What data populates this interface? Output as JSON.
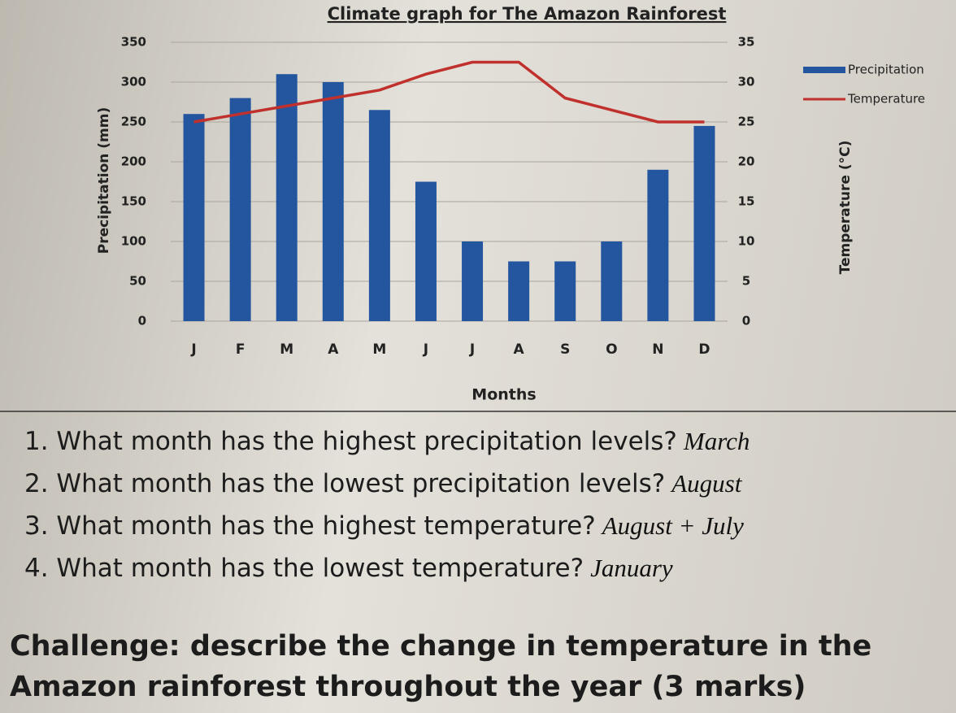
{
  "chart_data": {
    "type": "bar",
    "title": "Climate graph for The Amazon Rainforest",
    "categories": [
      "J",
      "F",
      "M",
      "A",
      "M",
      "J",
      "J",
      "A",
      "S",
      "O",
      "N",
      "D"
    ],
    "series": [
      {
        "name": "Precipitation",
        "type": "bar",
        "color": "#2456a0",
        "values": [
          260,
          280,
          310,
          300,
          265,
          175,
          100,
          75,
          75,
          100,
          190,
          245
        ]
      },
      {
        "name": "Temperature",
        "type": "line",
        "axis": "y2",
        "color": "#c0302c",
        "values": [
          25,
          26,
          27,
          28,
          29,
          31,
          32.5,
          32.5,
          28,
          26.5,
          25,
          25
        ]
      }
    ],
    "ylabel": "Precipitation (mm)",
    "y2label": "Temperature (°C)",
    "xlabel": "Months",
    "ylim": [
      0,
      350
    ],
    "yticks": [
      0,
      50,
      100,
      150,
      200,
      250,
      300,
      350
    ],
    "y2lim": [
      0,
      35
    ],
    "y2ticks": [
      0,
      5,
      10,
      15,
      20,
      25,
      30,
      35
    ],
    "grid": true,
    "legend": "right"
  },
  "questions": [
    {
      "text": "1. What month has the highest precipitation levels?",
      "answer": "March"
    },
    {
      "text": "2. What month has the lowest precipitation levels?",
      "answer": "August"
    },
    {
      "text": "3. What month has the highest temperature?",
      "answer": "August + July"
    },
    {
      "text": "4. What month has the lowest temperature?",
      "answer": "January"
    }
  ],
  "challenge": "Challenge: describe the change in temperature in the Amazon rainforest throughout the year (3 marks)"
}
